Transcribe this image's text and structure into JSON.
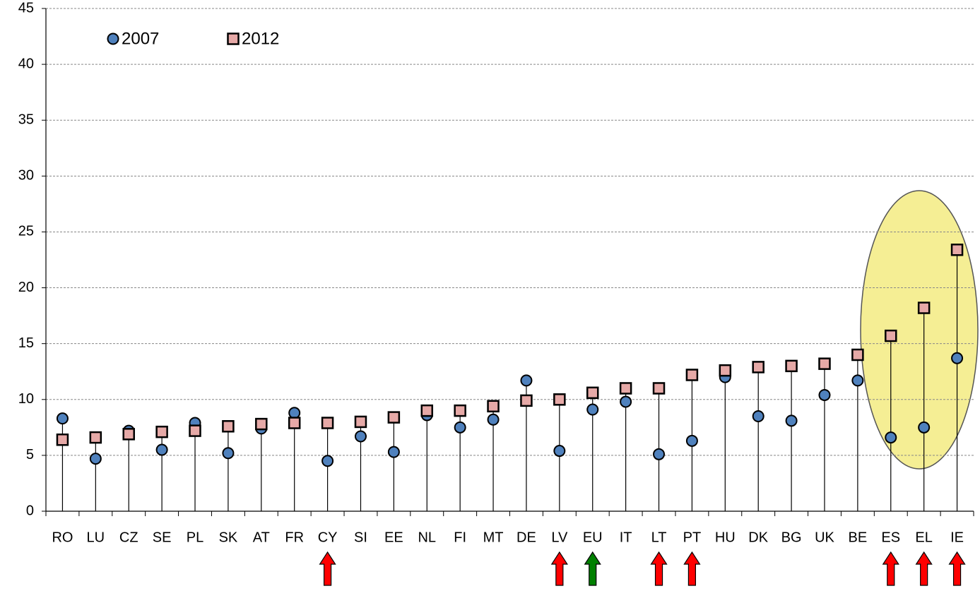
{
  "chart_data": {
    "type": "dot-stem",
    "categories": [
      "RO",
      "LU",
      "CZ",
      "SE",
      "PL",
      "SK",
      "AT",
      "FR",
      "CY",
      "SI",
      "EE",
      "NL",
      "FI",
      "MT",
      "DE",
      "LV",
      "EU",
      "IT",
      "LT",
      "PT",
      "HU",
      "DK",
      "BG",
      "UK",
      "BE",
      "ES",
      "EL",
      "IE"
    ],
    "series": [
      {
        "name": "2007",
        "color": "#4f81bd",
        "marker": "circle",
        "values": [
          8.3,
          4.7,
          7.2,
          5.5,
          7.9,
          5.2,
          7.4,
          8.8,
          4.5,
          6.7,
          5.3,
          8.6,
          7.5,
          8.2,
          11.7,
          5.4,
          9.1,
          9.8,
          5.1,
          6.3,
          12.0,
          8.5,
          8.1,
          10.4,
          11.7,
          6.6,
          7.5,
          13.7
        ]
      },
      {
        "name": "2012",
        "color": "#e6a9a7",
        "marker": "square",
        "values": [
          6.4,
          6.6,
          6.9,
          7.1,
          7.2,
          7.6,
          7.8,
          7.9,
          7.9,
          8.0,
          8.4,
          9.0,
          9.0,
          9.4,
          9.9,
          10.0,
          10.6,
          11.0,
          11.0,
          12.2,
          12.6,
          12.9,
          13.0,
          13.2,
          14.0,
          15.7,
          18.2,
          23.4
        ]
      }
    ],
    "ylim": [
      0,
      45
    ],
    "yticks": [
      0,
      5,
      10,
      15,
      20,
      25,
      30,
      35,
      40,
      45
    ],
    "grid": true,
    "arrows": [
      {
        "category": "CY",
        "color": "#ff0000"
      },
      {
        "category": "LV",
        "color": "#ff0000"
      },
      {
        "category": "EU",
        "color": "#008000"
      },
      {
        "category": "LT",
        "color": "#ff0000"
      },
      {
        "category": "PT",
        "color": "#ff0000"
      },
      {
        "category": "ES",
        "color": "#ff0000"
      },
      {
        "category": "EL",
        "color": "#ff0000"
      },
      {
        "category": "IE",
        "color": "#ff0000"
      }
    ]
  }
}
